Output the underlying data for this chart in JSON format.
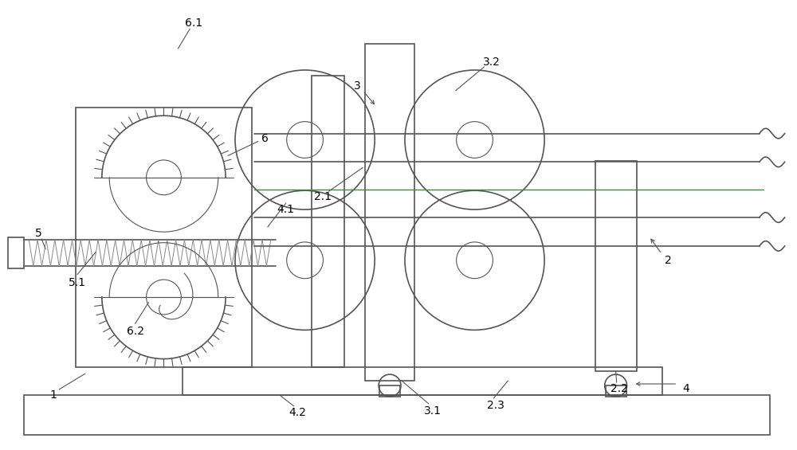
{
  "bg_color": "#ffffff",
  "lc": "#555555",
  "lw": 1.2,
  "tlw": 0.8,
  "figw": 10.0,
  "figh": 5.65
}
